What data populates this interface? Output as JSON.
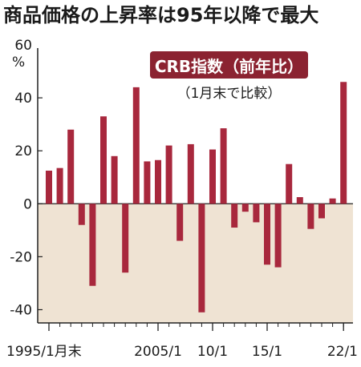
{
  "headline": "商品価格の上昇率は95年以降で最大",
  "legend": {
    "series_label": "CRB指数（前年比）",
    "note": "（1月末で比較）",
    "color": "#8b2331"
  },
  "colors": {
    "bar": "#a8283d",
    "negative_area": "#efe3d3",
    "axis": "#222222"
  },
  "chart_data": {
    "type": "bar",
    "categories": [
      "1995",
      "1996",
      "1997",
      "1998",
      "1999",
      "2000",
      "2001",
      "2002",
      "2003",
      "2004",
      "2005",
      "2006",
      "2007",
      "2008",
      "2009",
      "2010",
      "2011",
      "2012",
      "2013",
      "2014",
      "2015",
      "2016",
      "2017",
      "2018",
      "2019",
      "2020",
      "2021",
      "2022"
    ],
    "series": [
      {
        "name": "CRB指数（前年比）",
        "values": [
          12.5,
          13.5,
          28,
          -8,
          -31,
          33,
          18,
          -26,
          44,
          16,
          16.5,
          22,
          -14,
          22.5,
          -41,
          20.5,
          28.5,
          -9,
          -3,
          -7,
          -23,
          -24,
          15,
          2.5,
          -9.5,
          -5.5,
          2,
          46
        ]
      }
    ],
    "ylim": [
      -45,
      60
    ],
    "y_ticks": [
      -40,
      -20,
      0,
      20,
      40,
      60
    ],
    "y_unit": "%",
    "x_tick_labels": [
      {
        "index": 0,
        "label": "1995/1月末"
      },
      {
        "index": 10,
        "label": "2005/1"
      },
      {
        "index": 15,
        "label": "10/1"
      },
      {
        "index": 20,
        "label": "15/1"
      },
      {
        "index": 27,
        "label": "22/1"
      }
    ],
    "title": "",
    "xlabel": "",
    "ylabel": ""
  }
}
